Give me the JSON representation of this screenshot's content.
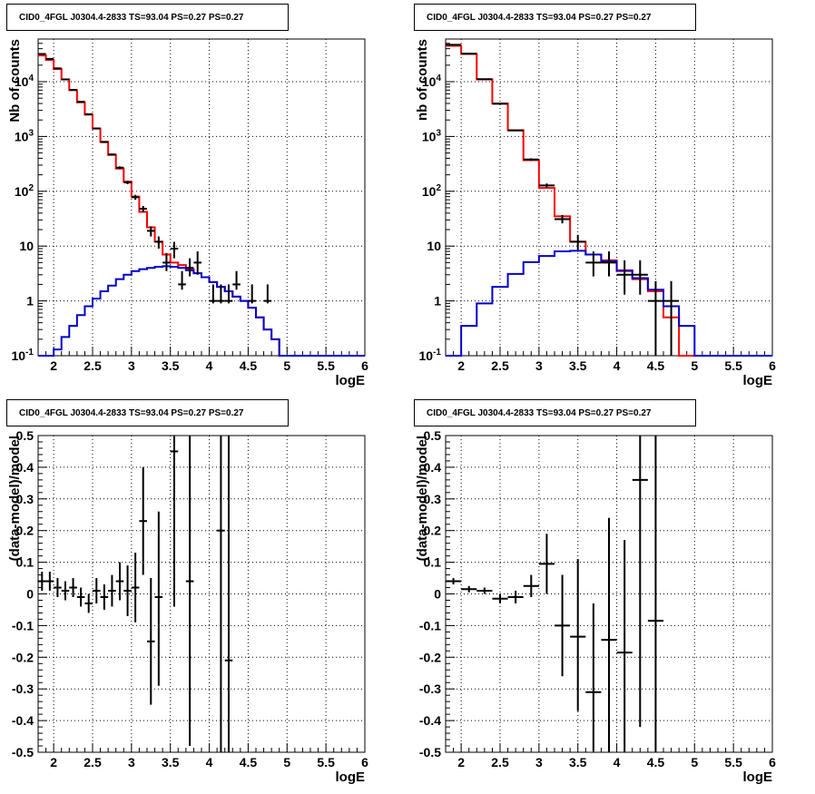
{
  "chart_data": [
    {
      "type": "line",
      "title": "CID0_4FGL J0304.4-2833 TS=93.04 PS=0.27 PS=0.27",
      "xlabel": "logE",
      "ylabel": "Nb of counts",
      "xlim": [
        1.8,
        6
      ],
      "ylim": [
        0.1,
        60000
      ],
      "yscale": "log",
      "xticks": [
        "2",
        "2.5",
        "3",
        "3.5",
        "4",
        "4.5",
        "5",
        "5.5",
        "6"
      ],
      "yticks": [
        "10^-1",
        "1",
        "10",
        "10^2",
        "10^3",
        "10^4"
      ],
      "grid": true,
      "bin_width": 0.1,
      "series": [
        {
          "color": "#ff0000",
          "style": "step",
          "edges": [
            1.8,
            1.9,
            2.0,
            2.1,
            2.2,
            2.3,
            2.4,
            2.5,
            2.6,
            2.7,
            2.8,
            2.9,
            3.0,
            3.1,
            3.2,
            3.3,
            3.4,
            3.5,
            3.6,
            3.7,
            3.8,
            3.9,
            4.0,
            4.1,
            4.2,
            4.3,
            4.4,
            4.5,
            4.6,
            4.7,
            4.8,
            4.9,
            5.0,
            5.1,
            5.2,
            5.3,
            5.4,
            5.5,
            5.6,
            5.7,
            5.8,
            5.9,
            6.0
          ],
          "values": [
            30000,
            25000,
            17000,
            11000,
            7000,
            4200,
            2500,
            1400,
            800,
            460,
            260,
            150,
            80,
            42,
            22,
            12,
            7,
            5,
            4.5,
            3.8,
            3.2,
            2.7,
            2.2,
            1.8,
            1.5,
            1.2,
            1.0,
            0.75,
            0.5,
            0.3,
            0.2,
            0.1,
            0.1,
            0.1,
            0.1,
            0.1,
            0.1,
            0.1,
            0.1,
            0.1,
            0.1,
            0.1
          ]
        },
        {
          "color": "#0000cc",
          "style": "step",
          "edges": [
            1.8,
            1.9,
            2.0,
            2.1,
            2.2,
            2.3,
            2.4,
            2.5,
            2.6,
            2.7,
            2.8,
            2.9,
            3.0,
            3.1,
            3.2,
            3.3,
            3.4,
            3.5,
            3.6,
            3.7,
            3.8,
            3.9,
            4.0,
            4.1,
            4.2,
            4.3,
            4.4,
            4.5,
            4.6,
            4.7,
            4.8,
            4.9,
            5.0,
            5.1,
            5.2,
            5.3,
            5.4,
            5.5,
            5.6,
            5.7,
            5.8,
            5.9,
            6.0
          ],
          "values": [
            0.1,
            0.1,
            0.13,
            0.22,
            0.35,
            0.55,
            0.8,
            1.1,
            1.5,
            1.9,
            2.5,
            3.0,
            3.5,
            3.8,
            4.0,
            4.2,
            4.3,
            4.2,
            4.0,
            3.6,
            3.2,
            2.7,
            2.2,
            1.8,
            1.5,
            1.2,
            1.0,
            0.75,
            0.5,
            0.3,
            0.2,
            0.1,
            0.1,
            0.1,
            0.1,
            0.1,
            0.1,
            0.1,
            0.1,
            0.1,
            0.1,
            0.1
          ]
        }
      ],
      "points": {
        "color": "#000000",
        "x": [
          1.85,
          1.95,
          2.05,
          2.15,
          2.25,
          2.35,
          2.45,
          2.55,
          2.65,
          2.75,
          2.85,
          2.95,
          3.05,
          3.15,
          3.25,
          3.35,
          3.45,
          3.55,
          3.65,
          3.75,
          3.85,
          4.05,
          4.15,
          4.25,
          4.35,
          4.55,
          4.75
        ],
        "y": [
          32000,
          26000,
          17500,
          11000,
          7100,
          4300,
          2550,
          1400,
          790,
          470,
          270,
          145,
          78,
          48,
          19,
          12,
          5,
          9,
          2,
          4,
          5,
          1,
          1,
          1,
          2,
          1,
          1
        ],
        "err_low": [
          31700,
          25700,
          17300,
          10800,
          6950,
          4200,
          2500,
          1360,
          760,
          450,
          255,
          135,
          70,
          42,
          15,
          9,
          3.5,
          6,
          1.6,
          2.8,
          3,
          0.9,
          0.9,
          0.9,
          1.6,
          0.9,
          0.9
        ],
        "err_high": [
          32300,
          26300,
          17700,
          11200,
          7250,
          4400,
          2600,
          1440,
          820,
          490,
          285,
          155,
          86,
          54,
          23,
          15,
          7.5,
          12,
          3.5,
          6,
          8,
          2,
          2,
          2,
          3.5,
          2,
          2
        ],
        "xerr": 0.05
      }
    },
    {
      "type": "line",
      "title": "CID0_4FGL J0304.4-2833 TS=93.04 PS=0.27 PS=0.27",
      "xlabel": "logE",
      "ylabel": "nb of counts",
      "xlim": [
        1.8,
        6
      ],
      "ylim": [
        0.1,
        60000
      ],
      "yscale": "log",
      "xticks": [
        "2",
        "2.5",
        "3",
        "3.5",
        "4",
        "4.5",
        "5",
        "5.5",
        "6"
      ],
      "yticks": [
        "10^-1",
        "1",
        "10",
        "10^2",
        "10^3",
        "10^4"
      ],
      "grid": true,
      "bin_width": 0.2,
      "series": [
        {
          "color": "#ff0000",
          "style": "step",
          "edges": [
            1.8,
            2.0,
            2.2,
            2.4,
            2.6,
            2.8,
            3.0,
            3.2,
            3.4,
            3.6,
            3.8,
            4.0,
            4.2,
            4.4,
            4.6,
            4.8,
            5.0,
            5.2,
            5.4,
            5.6,
            5.8,
            6.0
          ],
          "values": [
            45000,
            32000,
            11000,
            4000,
            1300,
            370,
            115,
            35,
            12,
            7,
            5.5,
            3.5,
            2.5,
            1.5,
            0.5,
            0.1,
            0.1,
            0.1,
            0.1,
            0.1,
            0.1
          ]
        },
        {
          "color": "#0000cc",
          "style": "step",
          "edges": [
            1.8,
            2.0,
            2.2,
            2.4,
            2.6,
            2.8,
            3.0,
            3.2,
            3.4,
            3.6,
            3.8,
            4.0,
            4.2,
            4.4,
            4.6,
            4.8,
            5.0,
            5.2,
            5.4,
            5.6,
            5.8,
            6.0
          ],
          "values": [
            0.1,
            0.35,
            0.9,
            1.8,
            3.1,
            5.1,
            6.6,
            8.0,
            8.2,
            7.0,
            5.3,
            3.6,
            2.6,
            1.6,
            0.8,
            0.35,
            0.1,
            0.1,
            0.1,
            0.1,
            0.1
          ]
        }
      ],
      "points": {
        "color": "#000000",
        "x": [
          1.9,
          2.1,
          2.3,
          2.5,
          2.7,
          2.9,
          3.1,
          3.3,
          3.5,
          3.7,
          3.9,
          4.1,
          4.3,
          4.5,
          4.7
        ],
        "y": [
          47000,
          32500,
          11100,
          3950,
          1290,
          380,
          128,
          31,
          12,
          5,
          5,
          3,
          3,
          1,
          1
        ],
        "err_low": [
          46780,
          32300,
          10990,
          3890,
          1255,
          360,
          117,
          26,
          8.6,
          2.8,
          2.8,
          1.3,
          1.3,
          0.1,
          0.1
        ],
        "err_high": [
          47220,
          32700,
          11210,
          4010,
          1325,
          400,
          139,
          37,
          16,
          8,
          8,
          5.5,
          5.5,
          2.3,
          2.3
        ],
        "xerr": 0.1
      }
    },
    {
      "type": "line",
      "title": "CID0_4FGL J0304.4-2833 TS=93.04 PS=0.27 PS=0.27",
      "xlabel": "logE",
      "ylabel": "(data-model)/model",
      "xlim": [
        1.8,
        6
      ],
      "ylim": [
        -0.5,
        0.5
      ],
      "xticks": [
        "2",
        "2.5",
        "3",
        "3.5",
        "4",
        "4.5",
        "5",
        "5.5",
        "6"
      ],
      "yticks": [
        "-0.5",
        "-0.4",
        "-0.3",
        "-0.2",
        "-0.1",
        "0",
        "0.1",
        "0.2",
        "0.3",
        "0.4",
        "0.5"
      ],
      "grid": true,
      "points": {
        "color": "#000000",
        "x": [
          1.85,
          1.95,
          2.05,
          2.15,
          2.25,
          2.35,
          2.45,
          2.55,
          2.65,
          2.75,
          2.85,
          2.95,
          3.05,
          3.15,
          3.25,
          3.35,
          3.55,
          3.75,
          4.15,
          4.25
        ],
        "y": [
          0.04,
          0.04,
          0.02,
          0.01,
          0.02,
          -0.01,
          -0.03,
          0.01,
          -0.01,
          0.01,
          0.04,
          0.01,
          0.02,
          0.23,
          -0.15,
          -0.01,
          0.45,
          0.04,
          0.2,
          -0.21
        ],
        "err_low": [
          0.01,
          0.01,
          -0.01,
          -0.02,
          -0.01,
          -0.04,
          -0.06,
          -0.03,
          -0.05,
          -0.04,
          -0.02,
          -0.07,
          -0.09,
          0.06,
          -0.35,
          -0.29,
          -0.04,
          -0.48,
          -0.5,
          -0.5
        ],
        "err_high": [
          0.07,
          0.07,
          0.05,
          0.04,
          0.05,
          0.02,
          0.0,
          0.05,
          0.03,
          0.06,
          0.1,
          0.09,
          0.13,
          0.4,
          0.05,
          0.26,
          0.5,
          0.5,
          0.5,
          0.5
        ],
        "xerr": 0.05
      }
    },
    {
      "type": "line",
      "title": "CID0_4FGL J0304.4-2833 TS=93.04 PS=0.27 PS=0.27",
      "xlabel": "logE",
      "ylabel": "(data-model)/model",
      "xlim": [
        1.8,
        6
      ],
      "ylim": [
        -0.5,
        0.5
      ],
      "xticks": [
        "2",
        "2.5",
        "3",
        "3.5",
        "4",
        "4.5",
        "5",
        "5.5",
        "6"
      ],
      "yticks": [
        "-0.5",
        "-0.4",
        "-0.3",
        "-0.2",
        "-0.1",
        "0",
        "0.1",
        "0.2",
        "0.3",
        "0.4",
        "0.5"
      ],
      "grid": true,
      "points": {
        "color": "#000000",
        "x": [
          1.9,
          2.1,
          2.3,
          2.5,
          2.7,
          2.9,
          3.1,
          3.3,
          3.5,
          3.7,
          3.9,
          4.1,
          4.3,
          4.5
        ],
        "y": [
          0.04,
          0.015,
          0.01,
          -0.015,
          -0.01,
          0.025,
          0.095,
          -0.1,
          -0.135,
          -0.31,
          -0.145,
          -0.185,
          0.36,
          -0.085
        ],
        "err_low": [
          0.03,
          0.005,
          0.0,
          -0.03,
          -0.03,
          -0.01,
          0.0,
          -0.26,
          -0.37,
          -0.5,
          -0.5,
          -0.5,
          -0.42,
          -0.5
        ],
        "err_high": [
          0.05,
          0.025,
          0.02,
          0.0,
          0.01,
          0.06,
          0.19,
          0.06,
          0.11,
          -0.03,
          0.24,
          0.17,
          0.5,
          0.5
        ],
        "xerr": 0.1
      }
    }
  ]
}
